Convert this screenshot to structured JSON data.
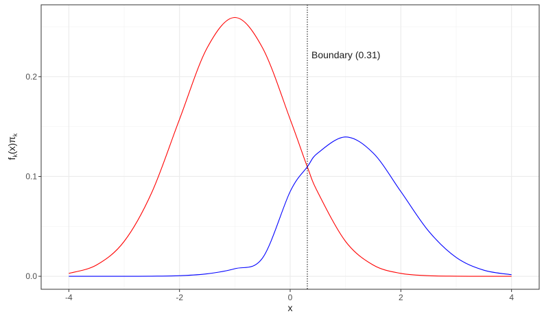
{
  "chart_data": {
    "type": "line",
    "xlabel": "x",
    "ylabel": {
      "base": "f",
      "sub1": "k",
      "mid": "(x)π",
      "sub2": "k"
    },
    "xlim": [
      -4.5,
      4.5
    ],
    "ylim": [
      -0.013,
      0.272
    ],
    "x_ticks": [
      -4,
      -2,
      0,
      2,
      4
    ],
    "x_tick_labels": [
      "-4",
      "-2",
      "0",
      "2",
      "4"
    ],
    "y_ticks": [
      0.0,
      0.1,
      0.2
    ],
    "y_tick_labels": [
      "0.0",
      "0.1",
      "0.2"
    ],
    "grid": true,
    "boundary": {
      "x": 0.31,
      "label": "Boundary (0.31)"
    },
    "series": [
      {
        "color": "#ff0000",
        "x": [
          -4.0,
          -3.5,
          -3.0,
          -2.5,
          -2.0,
          -1.5,
          -1.0,
          -0.5,
          0.0,
          0.31,
          0.5,
          1.0,
          1.5,
          2.0,
          2.5,
          3.0,
          3.5,
          4.0
        ],
        "y": [
          0.0029,
          0.0113,
          0.035,
          0.0841,
          0.1573,
          0.2289,
          0.2593,
          0.2289,
          0.1573,
          0.1096,
          0.0841,
          0.035,
          0.0113,
          0.0029,
          0.0006,
          0.0001,
          0.0,
          0.0
        ]
      },
      {
        "color": "#0000ff",
        "x": [
          -4.0,
          -3.5,
          -3.0,
          -2.5,
          -2.0,
          -1.5,
          -1.0,
          -0.5,
          0.0,
          0.31,
          0.5,
          1.0,
          1.5,
          2.0,
          2.5,
          3.0,
          3.5,
          4.0
        ],
        "y": [
          0.0,
          0.0,
          0.0,
          0.0001,
          0.0006,
          0.0025,
          0.0076,
          0.0183,
          0.0849,
          0.1097,
          0.1235,
          0.1396,
          0.1235,
          0.0849,
          0.0454,
          0.0189,
          0.0061,
          0.0016
        ]
      }
    ]
  }
}
